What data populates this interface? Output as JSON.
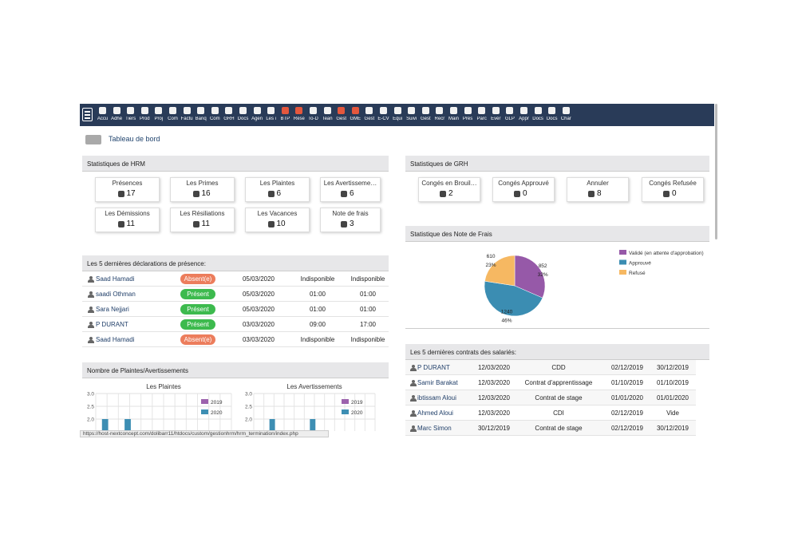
{
  "nav": {
    "items": [
      "Accu",
      "Adhé",
      "Tiers",
      "Prod",
      "Proj",
      "Com",
      "Factu",
      "Banq",
      "Com",
      "GRH",
      "Docs",
      "Agen",
      "Les i",
      "BTP",
      "Rése",
      "To-D",
      "Tean",
      "Gest",
      "GME",
      "Gest",
      "E-CV",
      "Équi",
      "Suivi",
      "Gest",
      "Recr",
      "Main",
      "Prés",
      "Parc",
      "Évér",
      "GLP",
      "Appr",
      "Docs",
      "Docs",
      "Char"
    ]
  },
  "breadcrumb": "Tableau de bord",
  "hrm": {
    "title": "Statistiques de HRM",
    "cards": [
      {
        "label": "Présences",
        "value": 17
      },
      {
        "label": "Les Primes",
        "value": 16
      },
      {
        "label": "Les Plaintes",
        "value": 6
      },
      {
        "label": "Les Avertisseme…",
        "value": 6
      },
      {
        "label": "Les Démissions",
        "value": 11
      },
      {
        "label": "Les Résiliations",
        "value": 11
      },
      {
        "label": "Les Vacances",
        "value": 10
      },
      {
        "label": "Note de frais",
        "value": 3
      }
    ]
  },
  "grh": {
    "title": "Statistiques de GRH",
    "cards": [
      {
        "label": "Congés en Brouil…",
        "value": 2
      },
      {
        "label": "Congés Approuvé",
        "value": 0
      },
      {
        "label": "Annuler",
        "value": 8
      },
      {
        "label": "Congés Refusée",
        "value": 0
      }
    ]
  },
  "presence": {
    "title": "Les 5 dernières déclarations de présence:",
    "rows": [
      {
        "name": "Saad Hamadi",
        "status": "Absent(e)",
        "badge_color": "#ec7d5c",
        "date": "05/03/2020",
        "in": "Indisponible",
        "out": "Indisponible"
      },
      {
        "name": "saadi Othman",
        "status": "Présent",
        "badge_color": "#3dba4e",
        "date": "05/03/2020",
        "in": "01:00",
        "out": "01:00"
      },
      {
        "name": "Sara Nejjari",
        "status": "Présent",
        "badge_color": "#3dba4e",
        "date": "05/03/2020",
        "in": "01:00",
        "out": "01:00"
      },
      {
        "name": "P DURANT",
        "status": "Présent",
        "badge_color": "#3dba4e",
        "date": "03/03/2020",
        "in": "09:00",
        "out": "17:00"
      },
      {
        "name": "Saad Hamadi",
        "status": "Absent(e)",
        "badge_color": "#ec7d5c",
        "date": "03/03/2020",
        "in": "Indisponible",
        "out": "Indisponible"
      }
    ]
  },
  "complaints": {
    "title": "Nombre de Plaintes/Avertissements",
    "charts": [
      {
        "type": "bar",
        "title": "Les Plaintes",
        "categories": [
          null,
          null,
          null,
          null,
          null,
          null,
          null,
          null,
          null,
          null,
          null,
          null
        ],
        "series": [
          {
            "name": "2019",
            "color": "#9c62ad",
            "values": [
              0,
              0,
              0,
              0,
              0,
              0,
              0,
              0,
              0,
              0,
              0,
              0
            ]
          },
          {
            "name": "2020",
            "color": "#3d8eb3",
            "values": [
              2,
              0,
              2,
              0,
              0,
              0,
              0,
              0,
              0,
              0,
              0,
              0
            ]
          }
        ],
        "ylim": [
          0,
          3
        ],
        "yticks": [
          {
            "value": 2,
            "label": "2.0"
          },
          {
            "value": 2.5,
            "label": "2.5"
          },
          {
            "value": 3,
            "label": "3.0"
          }
        ]
      },
      {
        "type": "bar",
        "title": "Les Avertissements",
        "categories": [
          null,
          null,
          null,
          null,
          null,
          null,
          null,
          null,
          null,
          null,
          null,
          null
        ],
        "series": [
          {
            "name": "2019",
            "color": "#9c62ad",
            "values": [
              0,
              0,
              0,
              0,
              0,
              0,
              0,
              0,
              0,
              0,
              0,
              0
            ]
          },
          {
            "name": "2020",
            "color": "#3d8eb3",
            "values": [
              0,
              2,
              0,
              0,
              0,
              2,
              0,
              0,
              0,
              0,
              0,
              0
            ]
          }
        ],
        "ylim": [
          0,
          3
        ],
        "yticks": [
          {
            "value": 2,
            "label": "2.0"
          },
          {
            "value": 2.5,
            "label": "2.5"
          },
          {
            "value": 3,
            "label": "3.0"
          }
        ]
      }
    ]
  },
  "expenses": {
    "title": "Statistique des Note de Frais",
    "chart": {
      "type": "pie",
      "categories": [
        "Validé (en attente d'approbation)",
        "Approuvé",
        "Refusé"
      ],
      "values": [
        852,
        1240,
        610
      ],
      "percent_labels": [
        "32%",
        "46%",
        "23%"
      ],
      "colors": [
        "#9659a8",
        "#3b8db2",
        "#f6b862"
      ]
    }
  },
  "contracts": {
    "title": "Les 5 dernières contrats des salariés:",
    "rows": [
      {
        "name": "P DURANT",
        "date": "12/03/2020",
        "type": "CDD",
        "start": "02/12/2019",
        "end": "30/12/2019"
      },
      {
        "name": "Samir Barakat",
        "date": "12/03/2020",
        "type": "Contrat d'apprentissage",
        "start": "01/10/2019",
        "end": "01/10/2019"
      },
      {
        "name": "ibtissam Aloui",
        "date": "12/03/2020",
        "type": "Contrat de stage",
        "start": "01/01/2020",
        "end": "01/01/2020"
      },
      {
        "name": "Ahmed Aloui",
        "date": "12/03/2020",
        "type": "CDI",
        "start": "02/12/2019",
        "end": "Vide"
      },
      {
        "name": "Marc Simon",
        "date": "30/12/2019",
        "type": "Contrat de stage",
        "start": "02/12/2019",
        "end": "30/12/2019"
      }
    ]
  },
  "status_url": "https://host-nextconcept.com/dolibarr11/htdocs/custom/gestionhrm/hrm_termination/index.php"
}
